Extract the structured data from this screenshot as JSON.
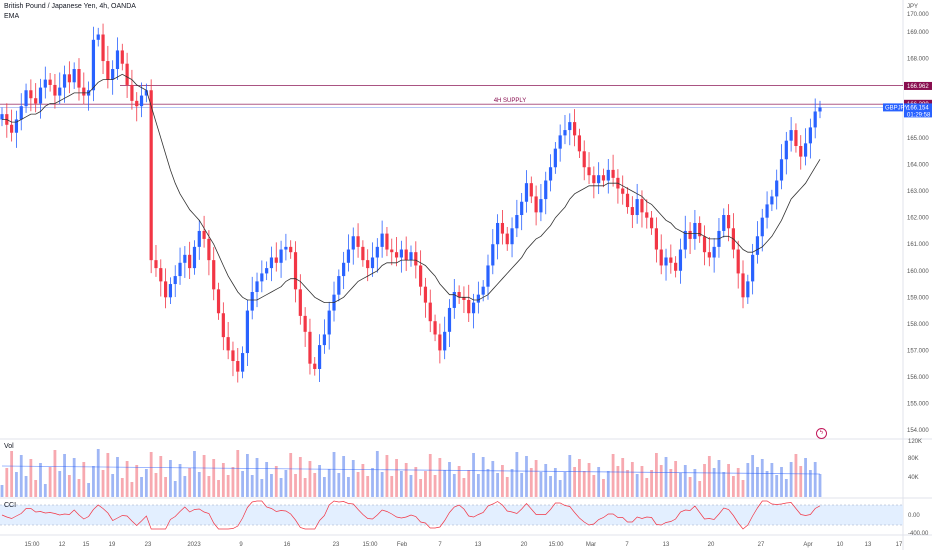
{
  "symbol": {
    "title": "British Pound / Japanese Yen, 4h, OANDA",
    "indicator_ema": "EMA",
    "ticker": "GBPJPY",
    "currency": "JPY"
  },
  "zone": {
    "label": "4H SUPPLY",
    "upper_price": "166.962",
    "lower_price": "166.289",
    "color": "#880e4f"
  },
  "current": {
    "price": "166.154",
    "countdown": "01:29:58",
    "color": "#2962ff"
  },
  "price_axis": {
    "ticks": [
      "169.000",
      "168.000",
      "167.000",
      "165.000",
      "164.000",
      "163.000",
      "162.000",
      "161.000",
      "160.000",
      "159.000",
      "158.000",
      "157.000",
      "156.000",
      "155.000",
      "154.000"
    ],
    "top_partial": "170.000"
  },
  "volume_panel": {
    "label": "Vol",
    "ticks": [
      "120K",
      "80K",
      "40K"
    ]
  },
  "cci_panel": {
    "label": "CCI",
    "ticks": [
      "0.00",
      "-400.00"
    ]
  },
  "time_axis": {
    "labels": [
      "15:00",
      "12",
      "15",
      "19",
      "23",
      "2023",
      "9",
      "16",
      "23",
      "15:00",
      "Feb",
      "7",
      "13",
      "20",
      "15:00",
      "Mar",
      "7",
      "13",
      "20",
      "27",
      "Apr",
      "10",
      "13",
      "17"
    ]
  },
  "colors": {
    "up": "#2962ff",
    "down": "#f23645",
    "ema": "#333333",
    "vol_up": "#9fb6f5",
    "vol_down": "#f7a9b0",
    "cci": "#f23645",
    "cci_band": "#e3efff"
  },
  "chart_data": {
    "type": "candlestick",
    "ylim": [
      153.7,
      170.2
    ],
    "closes": [
      165.9,
      165.5,
      165.2,
      165.7,
      166.2,
      166.8,
      166.5,
      166.3,
      166.9,
      167.2,
      167.0,
      166.6,
      166.9,
      167.4,
      167.1,
      167.6,
      166.9,
      166.6,
      166.8,
      168.7,
      168.9,
      167.9,
      167.2,
      167.6,
      168.3,
      167.8,
      167.0,
      166.4,
      166.2,
      166.6,
      166.8,
      160.4,
      160.1,
      159.6,
      159.0,
      159.5,
      159.8,
      160.3,
      160.6,
      160.1,
      160.9,
      161.5,
      161.2,
      160.4,
      159.3,
      158.4,
      157.5,
      157.0,
      156.6,
      156.2,
      156.9,
      158.5,
      159.2,
      159.6,
      159.9,
      160.1,
      160.5,
      160.3,
      160.8,
      160.9,
      160.7,
      159.3,
      158.3,
      157.7,
      156.5,
      156.3,
      157.2,
      157.6,
      158.5,
      159.1,
      159.8,
      160.3,
      160.8,
      161.3,
      160.9,
      160.4,
      160.1,
      160.5,
      160.9,
      161.4,
      160.8,
      160.7,
      160.5,
      160.8,
      160.4,
      160.7,
      160.2,
      159.4,
      158.8,
      158.1,
      157.6,
      157.0,
      157.7,
      158.6,
      159.2,
      159.0,
      158.9,
      158.4,
      158.8,
      159.1,
      159.4,
      160.2,
      161.0,
      161.8,
      161.4,
      161.0,
      161.6,
      162.1,
      162.6,
      163.3,
      162.8,
      162.2,
      162.7,
      163.4,
      163.9,
      164.6,
      165.1,
      165.3,
      165.6,
      165.1,
      164.5,
      163.9,
      163.6,
      163.3,
      163.6,
      163.4,
      163.8,
      163.5,
      163.1,
      162.9,
      162.4,
      162.1,
      162.7,
      162.2,
      162.0,
      161.6,
      160.8,
      160.2,
      160.5,
      160.3,
      160.0,
      160.8,
      161.5,
      161.2,
      161.8,
      161.3,
      160.7,
      160.5,
      160.9,
      161.5,
      162.1,
      161.6,
      160.8,
      159.9,
      159.0,
      159.6,
      160.6,
      161.3,
      162.0,
      162.5,
      162.8,
      163.4,
      164.2,
      164.9,
      165.3,
      164.7,
      164.3,
      164.8,
      165.4,
      166.0,
      166.15
    ],
    "ema": [
      165.7,
      165.7,
      165.6,
      165.6,
      165.7,
      165.8,
      165.9,
      165.9,
      166.0,
      166.2,
      166.3,
      166.3,
      166.4,
      166.5,
      166.6,
      166.7,
      166.7,
      166.7,
      166.7,
      166.9,
      167.1,
      167.2,
      167.2,
      167.2,
      167.3,
      167.4,
      167.3,
      167.2,
      167.0,
      166.9,
      166.8,
      166.2,
      165.6,
      165.0,
      164.4,
      163.8,
      163.3,
      162.9,
      162.6,
      162.3,
      162.1,
      161.9,
      161.6,
      161.3,
      161.0,
      160.6,
      160.2,
      159.8,
      159.5,
      159.2,
      159.0,
      158.9,
      158.9,
      158.9,
      159.0,
      159.1,
      159.2,
      159.3,
      159.4,
      159.6,
      159.7,
      159.7,
      159.6,
      159.4,
      159.2,
      159.0,
      158.9,
      158.8,
      158.8,
      158.8,
      158.9,
      159.0,
      159.2,
      159.4,
      159.6,
      159.7,
      159.8,
      159.9,
      160.0,
      160.2,
      160.3,
      160.3,
      160.3,
      160.4,
      160.4,
      160.4,
      160.4,
      160.3,
      160.2,
      160.0,
      159.8,
      159.5,
      159.3,
      159.1,
      159.1,
      159.0,
      159.0,
      159.0,
      158.9,
      158.9,
      159.0,
      159.1,
      159.3,
      159.5,
      159.7,
      159.9,
      160.1,
      160.3,
      160.5,
      160.8,
      161.0,
      161.2,
      161.3,
      161.5,
      161.7,
      162.0,
      162.2,
      162.4,
      162.7,
      162.9,
      163.0,
      163.1,
      163.2,
      163.2,
      163.2,
      163.2,
      163.3,
      163.3,
      163.3,
      163.2,
      163.1,
      163.0,
      162.9,
      162.8,
      162.6,
      162.5,
      162.3,
      162.1,
      161.9,
      161.8,
      161.6,
      161.5,
      161.4,
      161.4,
      161.4,
      161.4,
      161.3,
      161.2,
      161.2,
      161.2,
      161.3,
      161.3,
      161.2,
      161.0,
      160.8,
      160.7,
      160.7,
      160.8,
      160.9,
      161.1,
      161.3,
      161.6,
      161.9,
      162.3,
      162.7,
      162.9,
      163.1,
      163.3,
      163.6,
      163.9,
      164.2
    ]
  }
}
